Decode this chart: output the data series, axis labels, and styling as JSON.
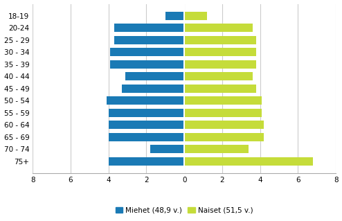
{
  "categories": [
    "18-19",
    "20-24",
    "25 - 29",
    "30 - 34",
    "35 - 39",
    "40 - 44",
    "45 - 49",
    "50 - 54",
    "55 - 59",
    "60 - 64",
    "65 - 69",
    "70 - 74",
    "75+"
  ],
  "men_values": [
    1.0,
    3.7,
    3.7,
    3.9,
    3.9,
    3.1,
    3.3,
    4.1,
    4.0,
    4.0,
    4.0,
    1.8,
    4.0
  ],
  "women_values": [
    1.2,
    3.6,
    3.8,
    3.8,
    3.8,
    3.6,
    3.8,
    4.1,
    4.1,
    4.2,
    4.2,
    3.4,
    6.8
  ],
  "men_color": "#1a7ab5",
  "women_color": "#c5dc3a",
  "xlim": [
    -8,
    8
  ],
  "xticks": [
    -8,
    -6,
    -4,
    -2,
    0,
    2,
    4,
    6,
    8
  ],
  "xtick_labels": [
    "8",
    "6",
    "4",
    "2",
    "0",
    "2",
    "4",
    "6",
    "8"
  ],
  "legend_men": "Miehet (48,9 v.)",
  "legend_women": "Naiset (51,5 v.)",
  "bar_height": 0.7,
  "grid_color": "#cccccc",
  "background_color": "#ffffff"
}
